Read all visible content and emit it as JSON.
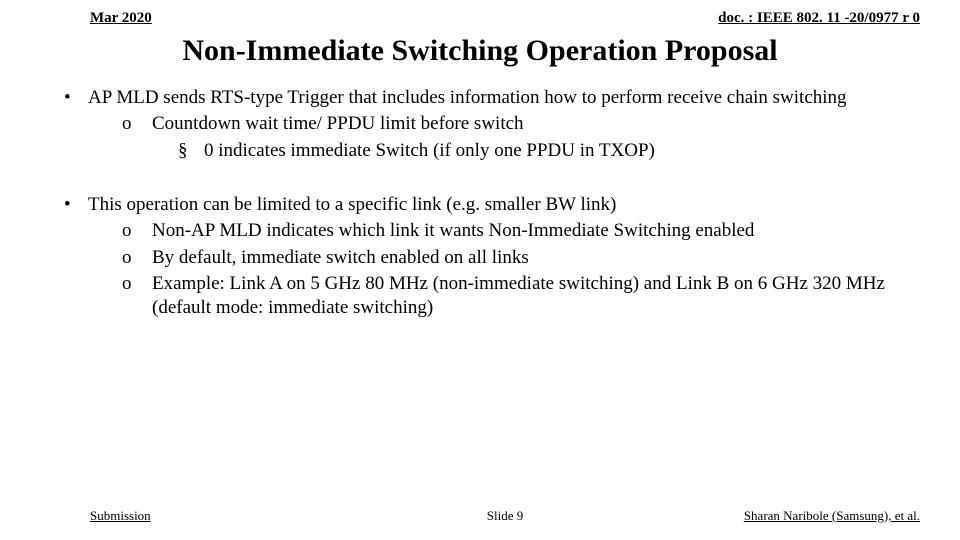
{
  "header": {
    "date": "Mar 2020",
    "docref": "doc. : IEEE 802. 11 -20/0977 r 0"
  },
  "title": "Non-Immediate Switching Operation Proposal",
  "bullets": [
    {
      "level": 1,
      "marker": "•",
      "text": "AP MLD sends RTS-type Trigger that includes information how to perform receive chain switching"
    },
    {
      "level": 2,
      "marker": "o",
      "text": "Countdown wait time/ PPDU limit before switch"
    },
    {
      "level": 3,
      "marker": "§",
      "text": "0 indicates immediate Switch (if only one PPDU in TXOP)"
    },
    {
      "gap": true
    },
    {
      "level": 1,
      "marker": "•",
      "text": "This operation can be limited to a specific link (e.g. smaller BW link)"
    },
    {
      "level": 2,
      "marker": "o",
      "text": "Non-AP MLD indicates which link it wants Non-Immediate Switching enabled"
    },
    {
      "level": 2,
      "marker": "o",
      "text": "By default, immediate switch enabled on all links"
    },
    {
      "level": 2,
      "marker": "o",
      "text": "Example: Link A on 5 GHz 80 MHz (non-immediate switching) and Link B on 6 GHz 320 MHz (default mode: immediate switching)"
    }
  ],
  "footer": {
    "left": "Submission",
    "center": "Slide 9",
    "right": "Sharan Naribole (Samsung), et al."
  }
}
